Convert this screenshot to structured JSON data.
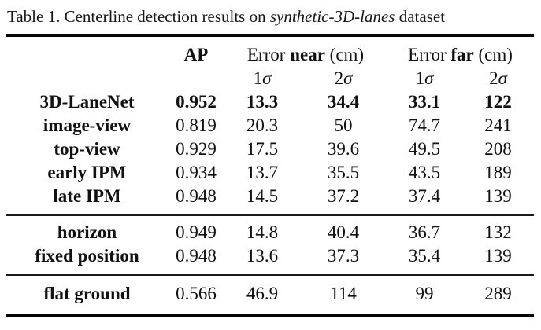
{
  "colors": {
    "background": "#ffffff",
    "text": "#111111",
    "rule_heavy": "#050505",
    "rule_light": "#1b1b1b"
  },
  "caption": {
    "prefix": "Table 1. Centerline detection results on ",
    "dataset": "synthetic-3D-lanes",
    "suffix": " dataset"
  },
  "table": {
    "col_ap": "AP",
    "near": {
      "pre": "Error ",
      "bold": "near",
      "post": " (cm)"
    },
    "far": {
      "pre": "Error ",
      "bold": "far",
      "post": " (cm)"
    },
    "subheaders": [
      {
        "n": "1",
        "s": "σ"
      },
      {
        "n": "2",
        "s": "σ"
      },
      {
        "n": "1",
        "s": "σ"
      },
      {
        "n": "2",
        "s": "σ"
      }
    ],
    "groups": [
      {
        "name": "main-methods",
        "rows": [
          {
            "label": "3D-LaneNet",
            "emphasize": true,
            "values": [
              "0.952",
              "13.3",
              "34.4",
              "33.1",
              "122"
            ]
          },
          {
            "label": "image-view",
            "emphasize": false,
            "values": [
              "0.819",
              "20.3",
              "50",
              "74.7",
              "241"
            ]
          },
          {
            "label": "top-view",
            "emphasize": false,
            "values": [
              "0.929",
              "17.5",
              "39.6",
              "49.5",
              "208"
            ]
          },
          {
            "label": "early IPM",
            "emphasize": false,
            "values": [
              "0.934",
              "13.7",
              "35.5",
              "43.5",
              "189"
            ]
          },
          {
            "label": "late IPM",
            "emphasize": false,
            "values": [
              "0.948",
              "14.5",
              "37.2",
              "37.4",
              "139"
            ]
          }
        ]
      },
      {
        "name": "ablations",
        "rows": [
          {
            "label": "horizon",
            "emphasize": false,
            "values": [
              "0.949",
              "14.8",
              "40.4",
              "36.7",
              "132"
            ]
          },
          {
            "label": "fixed position",
            "emphasize": false,
            "values": [
              "0.948",
              "13.6",
              "37.3",
              "35.4",
              "139"
            ]
          }
        ]
      },
      {
        "name": "baseline",
        "rows": [
          {
            "label": "flat ground",
            "emphasize": false,
            "values": [
              "0.566",
              "46.9",
              "114",
              "99",
              "289"
            ]
          }
        ]
      }
    ]
  }
}
